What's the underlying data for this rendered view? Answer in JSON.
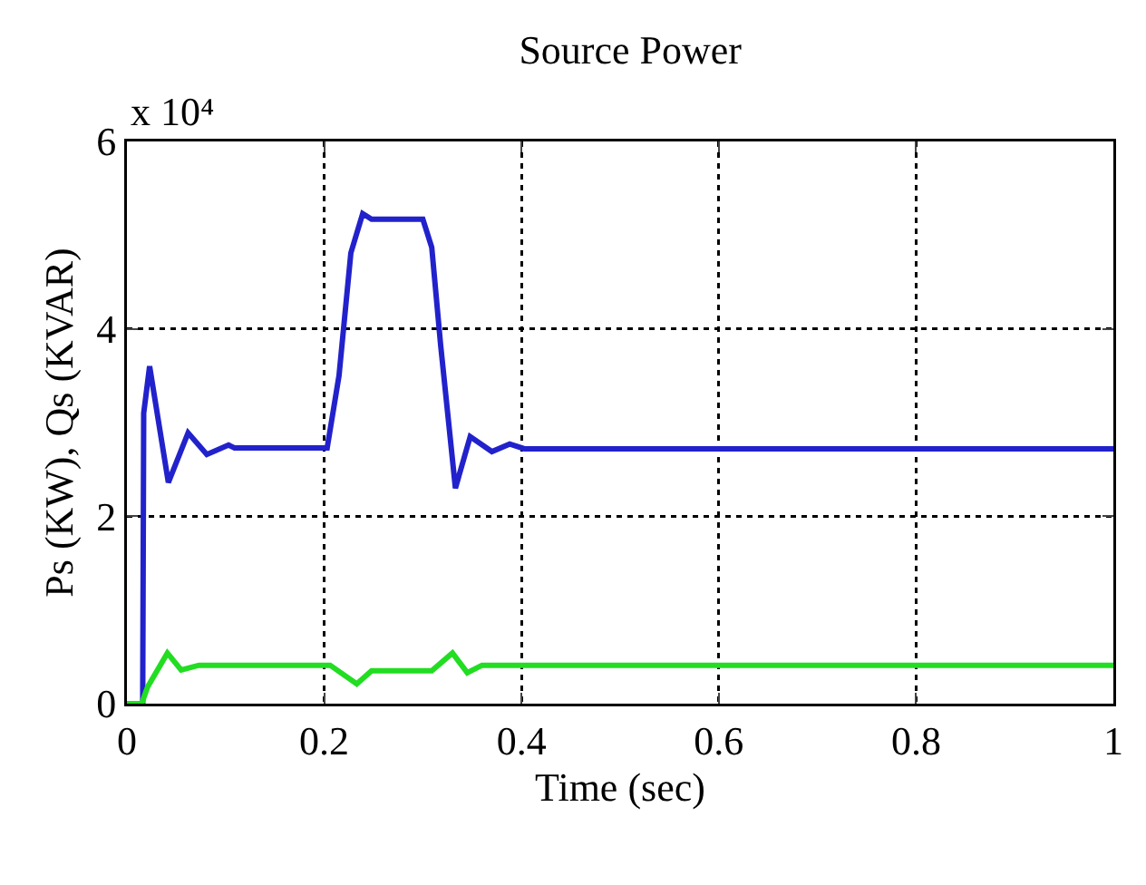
{
  "chart_data": {
    "type": "line",
    "title": "Source Power",
    "xlabel": "Time (sec)",
    "ylabel": "Ps (KW), Qs (KVAR)",
    "annotations": [
      "x 10⁴"
    ],
    "xlim": [
      0,
      1
    ],
    "xticks": [
      0,
      0.2,
      0.4,
      0.6,
      0.8,
      1
    ],
    "ylim": [
      0,
      6
    ],
    "yticks": [
      0,
      2,
      4,
      6
    ],
    "grid": true,
    "line_style": "solid",
    "series": [
      {
        "color": "#2222cc",
        "x": [
          0,
          0.016,
          0.017,
          0.023,
          0.042,
          0.062,
          0.081,
          0.103,
          0.109,
          0.203,
          0.215,
          0.227,
          0.239,
          0.248,
          0.3,
          0.309,
          0.318,
          0.333,
          0.348,
          0.37,
          0.388,
          0.403,
          1
        ],
        "values": [
          0,
          0,
          3.1,
          3.6,
          2.36,
          2.89,
          2.66,
          2.76,
          2.73,
          2.73,
          3.5,
          4.81,
          5.23,
          5.17,
          5.17,
          4.87,
          3.83,
          2.3,
          2.85,
          2.69,
          2.77,
          2.72,
          2.72
        ]
      },
      {
        "color": "#22dd22",
        "x": [
          0,
          0.015,
          0.021,
          0.041,
          0.055,
          0.073,
          0.206,
          0.233,
          0.248,
          0.309,
          0.33,
          0.345,
          0.36,
          1
        ],
        "values": [
          0,
          0,
          0.18,
          0.54,
          0.36,
          0.41,
          0.41,
          0.21,
          0.35,
          0.35,
          0.54,
          0.33,
          0.41,
          0.41
        ]
      }
    ]
  }
}
